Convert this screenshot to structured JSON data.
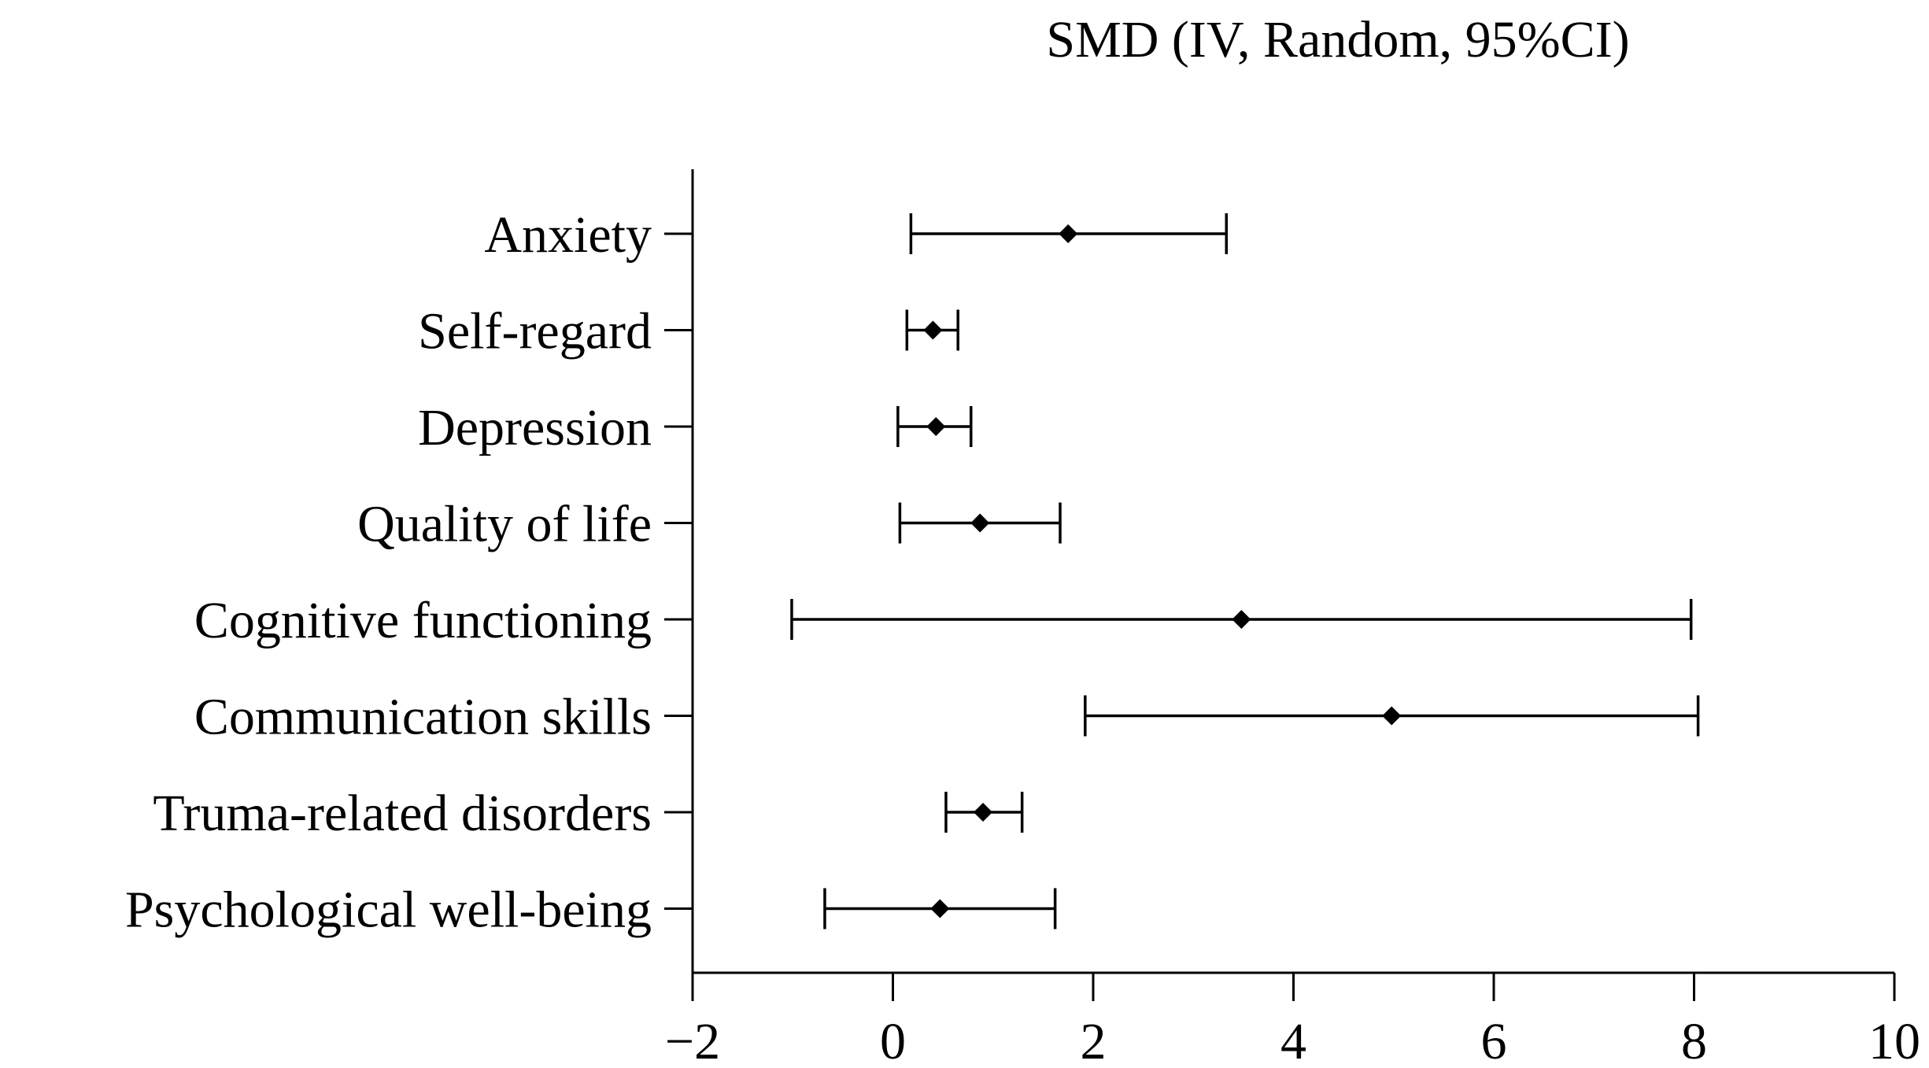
{
  "chart_data": {
    "type": "forest",
    "title": "SMD (IV, Random, 95%CI)",
    "xlabel": "",
    "ylabel": "",
    "xlim": [
      -2,
      10
    ],
    "xticks": [
      -2,
      0,
      2,
      4,
      6,
      8,
      10
    ],
    "xtick_labels": [
      "−2",
      "0",
      "2",
      "4",
      "6",
      "8",
      "10"
    ],
    "grid": false,
    "legend": "none",
    "colors": {
      "marker": "#000000",
      "line": "#000000",
      "axis": "#000000"
    },
    "categories": [
      "Anxiety",
      "Self-regard",
      "Depression",
      "Quality of life",
      "Cognitive functioning",
      "Communication skills",
      "Truma-related disorders",
      "Psychological well-being"
    ],
    "estimates": [
      1.75,
      0.4,
      0.43,
      0.87,
      3.48,
      4.98,
      0.9,
      0.47
    ],
    "ci_lower": [
      0.18,
      0.14,
      0.05,
      0.07,
      -1.01,
      1.92,
      0.53,
      -0.68
    ],
    "ci_upper": [
      3.33,
      0.65,
      0.78,
      1.67,
      7.97,
      8.04,
      1.29,
      1.62
    ]
  }
}
